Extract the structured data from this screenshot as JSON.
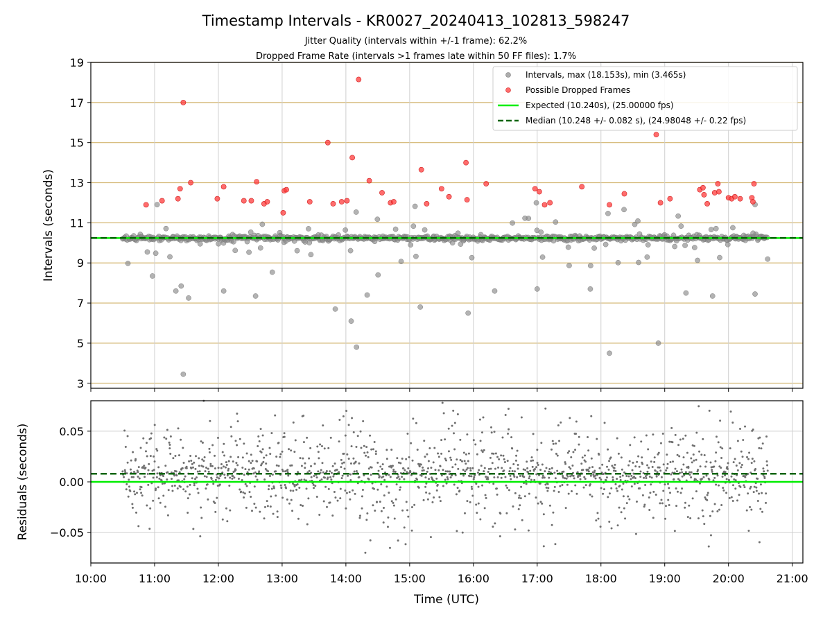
{
  "chart_data": [
    {
      "type": "scatter",
      "title": "Timestamp Intervals - KR0027_20240413_102813_598247",
      "subtitle_lines": [
        "Jitter Quality (intervals within +/-1 frame): 62.2%",
        "Dropped Frame Rate (intervals >1 frames late within 50 FF files): 1.7%"
      ],
      "xlabel": "",
      "ylabel": "Intervals (seconds)",
      "xlim": [
        "10:00",
        "21:10"
      ],
      "ylim": [
        2.75,
        19.0
      ],
      "yticks": [
        3,
        5,
        7,
        9,
        11,
        13,
        15,
        17,
        19
      ],
      "grid": true,
      "gridline_color": "#d2b46e",
      "legend_position": "top-right",
      "legend": [
        {
          "label": "Intervals, max (18.153s), min (3.465s)",
          "marker": "circle",
          "color": "#8a8a8a"
        },
        {
          "label": "Possible Dropped Frames",
          "marker": "circle",
          "color": "#ff3b3b"
        },
        {
          "label": "Expected (10.240s), (25.00000 fps)",
          "marker": "line",
          "color": "#00ee00"
        },
        {
          "label": "Median (10.248 +/- 0.082 s), (24.98048 +/- 0.22 fps)",
          "marker": "dashed-line",
          "color": "#006400"
        }
      ],
      "reference_lines": [
        {
          "name": "Expected",
          "y": 10.24,
          "color": "#00ee00",
          "style": "solid"
        },
        {
          "name": "Median",
          "y": 10.248,
          "color": "#006400",
          "style": "dashed"
        }
      ],
      "time_range": [
        "10:30",
        "20:37"
      ],
      "series": [
        {
          "name": "Intervals",
          "color": "#8a8a8a",
          "typical_value": 10.24,
          "max": 18.153,
          "min": 3.465,
          "outliers": [
            {
              "x": "11:27",
              "y": 3.45
            },
            {
              "x": "14:10",
              "y": 4.8
            },
            {
              "x": "18:08",
              "y": 4.5
            },
            {
              "x": "18:54",
              "y": 5.0
            },
            {
              "x": "14:05",
              "y": 6.1
            },
            {
              "x": "15:55",
              "y": 6.5
            },
            {
              "x": "13:50",
              "y": 6.7
            },
            {
              "x": "15:10",
              "y": 6.8
            },
            {
              "x": "11:32",
              "y": 7.25
            },
            {
              "x": "12:35",
              "y": 7.35
            },
            {
              "x": "14:20",
              "y": 7.4
            },
            {
              "x": "11:20",
              "y": 7.6
            },
            {
              "x": "12:05",
              "y": 7.6
            },
            {
              "x": "19:20",
              "y": 7.5
            },
            {
              "x": "20:25",
              "y": 7.45
            },
            {
              "x": "19:45",
              "y": 7.35
            },
            {
              "x": "10:58",
              "y": 8.35
            },
            {
              "x": "11:25",
              "y": 7.85
            },
            {
              "x": "16:20",
              "y": 7.6
            },
            {
              "x": "17:00",
              "y": 7.7
            },
            {
              "x": "17:50",
              "y": 7.7
            }
          ]
        },
        {
          "name": "Possible Dropped Frames",
          "color": "#ff3b3b",
          "points": [
            {
              "x": "10:52",
              "y": 11.9
            },
            {
              "x": "11:07",
              "y": 12.1
            },
            {
              "x": "11:22",
              "y": 12.2
            },
            {
              "x": "11:24",
              "y": 12.7
            },
            {
              "x": "11:27",
              "y": 17.0
            },
            {
              "x": "11:34",
              "y": 13.0
            },
            {
              "x": "11:59",
              "y": 12.2
            },
            {
              "x": "12:05",
              "y": 12.8
            },
            {
              "x": "12:24",
              "y": 12.1
            },
            {
              "x": "12:31",
              "y": 12.1
            },
            {
              "x": "12:36",
              "y": 13.05
            },
            {
              "x": "12:43",
              "y": 11.95
            },
            {
              "x": "12:46",
              "y": 12.05
            },
            {
              "x": "13:01",
              "y": 11.5
            },
            {
              "x": "13:02",
              "y": 12.6
            },
            {
              "x": "13:04",
              "y": 12.65
            },
            {
              "x": "13:26",
              "y": 12.05
            },
            {
              "x": "13:43",
              "y": 15.0
            },
            {
              "x": "13:48",
              "y": 11.95
            },
            {
              "x": "13:56",
              "y": 12.05
            },
            {
              "x": "14:01",
              "y": 12.1
            },
            {
              "x": "14:06",
              "y": 14.25
            },
            {
              "x": "14:12",
              "y": 18.15
            },
            {
              "x": "14:22",
              "y": 13.1
            },
            {
              "x": "14:34",
              "y": 12.5
            },
            {
              "x": "14:42",
              "y": 12.0
            },
            {
              "x": "14:45",
              "y": 12.05
            },
            {
              "x": "15:11",
              "y": 13.65
            },
            {
              "x": "15:16",
              "y": 11.95
            },
            {
              "x": "15:30",
              "y": 12.7
            },
            {
              "x": "15:37",
              "y": 12.3
            },
            {
              "x": "15:53",
              "y": 14.0
            },
            {
              "x": "15:54",
              "y": 12.15
            },
            {
              "x": "16:12",
              "y": 12.95
            },
            {
              "x": "16:58",
              "y": 12.7
            },
            {
              "x": "17:02",
              "y": 12.55
            },
            {
              "x": "17:07",
              "y": 11.9
            },
            {
              "x": "17:12",
              "y": 12.0
            },
            {
              "x": "17:42",
              "y": 12.8
            },
            {
              "x": "18:08",
              "y": 11.9
            },
            {
              "x": "18:22",
              "y": 12.45
            },
            {
              "x": "18:52",
              "y": 15.4
            },
            {
              "x": "18:56",
              "y": 12.0
            },
            {
              "x": "19:05",
              "y": 12.2
            },
            {
              "x": "19:33",
              "y": 12.65
            },
            {
              "x": "19:36",
              "y": 12.75
            },
            {
              "x": "19:37",
              "y": 12.4
            },
            {
              "x": "19:40",
              "y": 11.95
            },
            {
              "x": "19:47",
              "y": 12.5
            },
            {
              "x": "19:50",
              "y": 12.95
            },
            {
              "x": "19:51",
              "y": 12.55
            },
            {
              "x": "20:00",
              "y": 12.25
            },
            {
              "x": "20:03",
              "y": 12.2
            },
            {
              "x": "20:06",
              "y": 12.3
            },
            {
              "x": "20:11",
              "y": 12.2
            },
            {
              "x": "20:22",
              "y": 12.25
            },
            {
              "x": "20:23",
              "y": 12.05
            },
            {
              "x": "20:24",
              "y": 12.95
            }
          ]
        }
      ]
    },
    {
      "type": "scatter",
      "xlabel": "Time (UTC)",
      "ylabel": "Residuals (seconds)",
      "xlim": [
        "10:00",
        "21:10"
      ],
      "xticks": [
        "10:00",
        "11:00",
        "12:00",
        "13:00",
        "14:00",
        "15:00",
        "16:00",
        "17:00",
        "18:00",
        "19:00",
        "20:00",
        "21:00"
      ],
      "ylim": [
        -0.08,
        0.08
      ],
      "yticks": [
        {
          "value": 0.05,
          "label": "0.05"
        },
        {
          "value": 0.0,
          "label": "0.00"
        },
        {
          "value": -0.05,
          "label": "−0.05"
        }
      ],
      "grid": true,
      "reference_lines": [
        {
          "name": "Expected",
          "y": 0.0,
          "color": "#00ee00",
          "style": "solid"
        },
        {
          "name": "Median",
          "y": 0.008,
          "color": "#006400",
          "style": "dashed"
        }
      ],
      "series": [
        {
          "name": "Residuals",
          "color": "#707070",
          "time_range": [
            "10:30",
            "20:37"
          ],
          "spread_std": 0.025,
          "center": 0.008
        }
      ]
    }
  ]
}
